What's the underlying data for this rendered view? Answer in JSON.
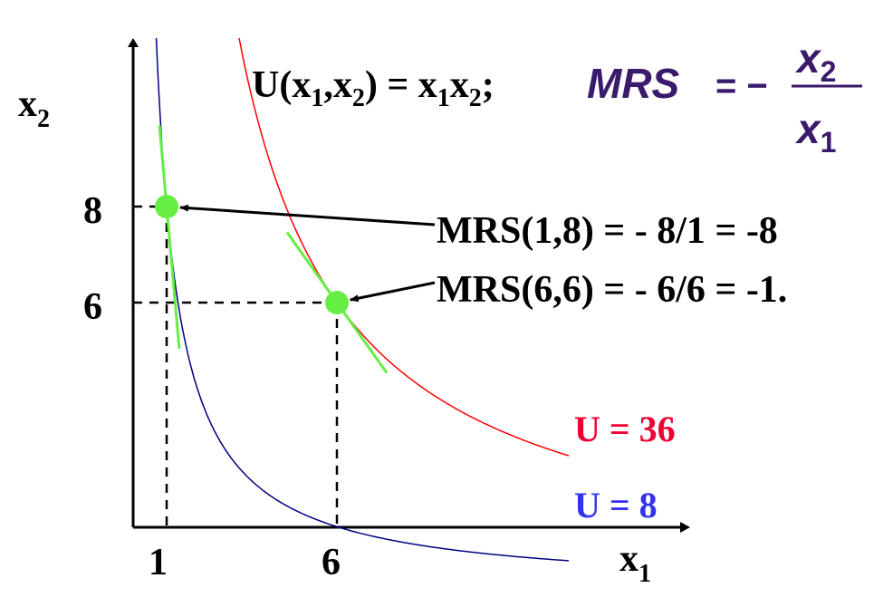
{
  "chart_data": {
    "type": "line",
    "title_formula": {
      "utility_prefix": "U(x",
      "utility_sub1": "1",
      "utility_comma": ",x",
      "utility_sub2": "2",
      "utility_eq": ") = x",
      "utility_sub3": "1",
      "utility_x2": "x",
      "utility_sub4": "2",
      "utility_end": ";",
      "mrs_label": "MRS",
      "mrs_eq": "= −",
      "mrs_num": "x",
      "mrs_num_sub": "2",
      "mrs_den": "x",
      "mrs_den_sub": "1"
    },
    "xlabel": "x",
    "xlabel_sub": "1",
    "ylabel": "x",
    "ylabel_sub": "2",
    "x_ticks": [
      "1",
      "6"
    ],
    "y_ticks": [
      "8",
      "6"
    ],
    "series": [
      {
        "name": "U = 8",
        "k": 8,
        "color": "#000080",
        "label_color": "#3333ee"
      },
      {
        "name": "U = 36",
        "k": 36,
        "color": "#ff0000",
        "label_color": "#ee0033"
      }
    ],
    "points": [
      {
        "x": 1,
        "y": 8,
        "label": "MRS(1,8) = - 8/1 = -8",
        "slope": -8
      },
      {
        "x": 6,
        "y": 6,
        "label": "MRS(6,6) = - 6/6 = -1.",
        "slope": -1
      }
    ],
    "colors": {
      "point": "#66ee44",
      "tangent": "#66ee44",
      "axis": "#000000",
      "formula": "#3a1a6a"
    }
  }
}
